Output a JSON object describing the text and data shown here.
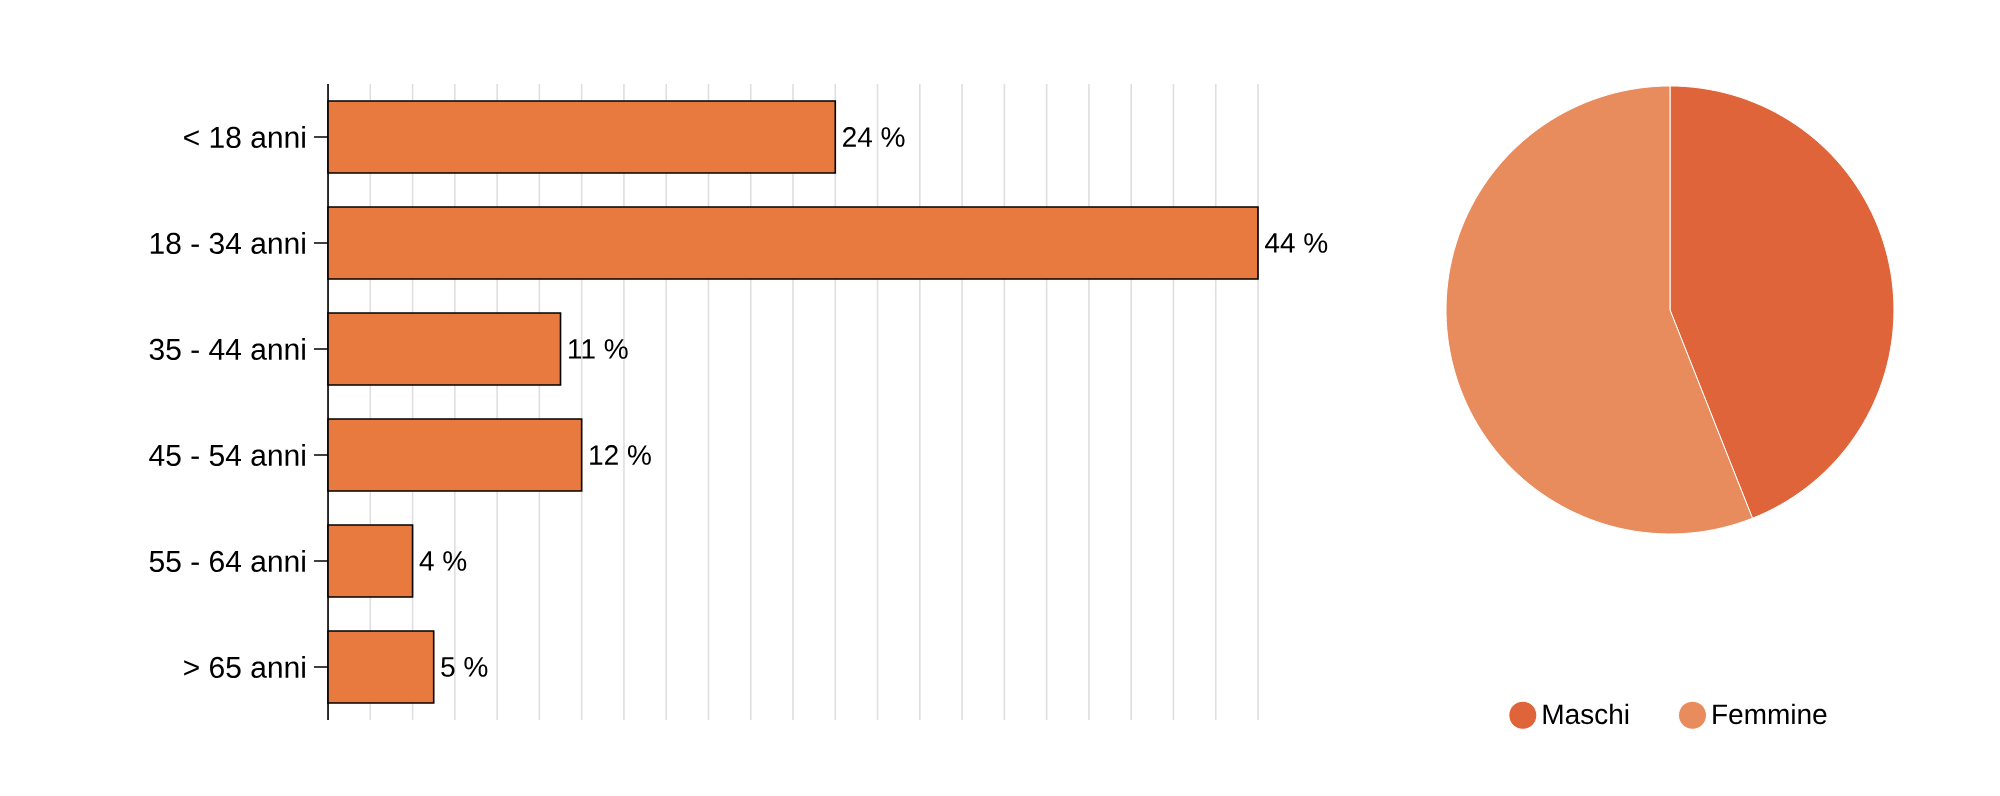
{
  "chart_data": [
    {
      "type": "bar",
      "orientation": "horizontal",
      "categories": [
        "< 18 anni",
        "18 - 34 anni",
        "35 - 44 anni",
        "45 - 54 anni",
        "55 - 64 anni",
        "> 65 anni"
      ],
      "values": [
        24,
        44,
        11,
        12,
        4,
        5
      ],
      "value_labels": [
        "24 %",
        "44 %",
        "11 %",
        "12 %",
        "4 %",
        "5 %"
      ],
      "color": "#e8793f",
      "grid": "x",
      "tick_labels": "y"
    },
    {
      "type": "pie",
      "categories": [
        "Maschi",
        "Femmine"
      ],
      "values": [
        44,
        56
      ],
      "colors": [
        "#e0643a",
        "#e88c5e"
      ],
      "legend": "bottom"
    }
  ]
}
